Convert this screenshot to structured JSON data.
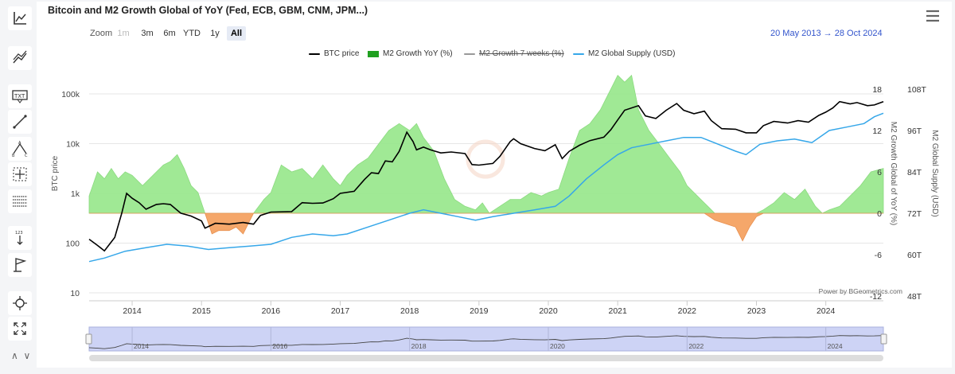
{
  "title": "Bitcoin and M2 Growth Global of YoY (Fed, ECB, GBM, CNM, JPM...)",
  "zoom": {
    "label": "Zoom",
    "buttons": [
      {
        "label": "1m",
        "state": "disabled"
      },
      {
        "label": "3m",
        "state": "normal"
      },
      {
        "label": "6m",
        "state": "normal"
      },
      {
        "label": "YTD",
        "state": "normal"
      },
      {
        "label": "1y",
        "state": "normal"
      },
      {
        "label": "All",
        "state": "active"
      }
    ]
  },
  "date_range": {
    "from": "20 May 2013",
    "arrow": "→",
    "to": "28 Oct 2024"
  },
  "legend": [
    {
      "name": "BTC price",
      "color": "#000000",
      "kind": "line",
      "visible": true
    },
    {
      "name": "M2 Growth YoY (%)",
      "color": "#20a020",
      "kind": "area",
      "visible": true
    },
    {
      "name": "M2 Growth 7 weeks (%)",
      "color": "#999999",
      "kind": "line",
      "visible": false
    },
    {
      "name": "M2 Global Supply (USD)",
      "color": "#36a7e9",
      "kind": "line",
      "visible": true
    }
  ],
  "credit": "Power by BGeometrics.com",
  "chart_data": {
    "type": "line",
    "x_ticks": [
      "2014",
      "2015",
      "2016",
      "2017",
      "2018",
      "2019",
      "2020",
      "2021",
      "2022",
      "2023",
      "2024"
    ],
    "x_range": [
      2013.38,
      2024.83
    ],
    "axes": {
      "btc": {
        "label": "BTC price",
        "scale": "log",
        "range": [
          10,
          200000
        ],
        "ticks": [
          "100k",
          "10k",
          "1k",
          "100",
          "10"
        ]
      },
      "m2_yoy": {
        "label": "M2 Growth Global of YoY (%)",
        "range": [
          -12,
          20
        ],
        "ticks": [
          "18",
          "12",
          "6",
          "0",
          "-6",
          "-12"
        ]
      },
      "m2_supply": {
        "label": "M2 Global Supply (USD)",
        "range": [
          48,
          110
        ],
        "ticks": [
          "108T",
          "96T",
          "84T",
          "72T",
          "60T",
          "48T"
        ]
      }
    },
    "series": [
      {
        "name": "BTC price",
        "axis": "btc",
        "points": [
          [
            2013.38,
            120
          ],
          [
            2013.5,
            90
          ],
          [
            2013.6,
            70
          ],
          [
            2013.75,
            130
          ],
          [
            2013.85,
            400
          ],
          [
            2013.92,
            1000
          ],
          [
            2014.0,
            800
          ],
          [
            2014.1,
            650
          ],
          [
            2014.2,
            480
          ],
          [
            2014.35,
            600
          ],
          [
            2014.45,
            620
          ],
          [
            2014.55,
            600
          ],
          [
            2014.7,
            400
          ],
          [
            2014.85,
            350
          ],
          [
            2015.0,
            280
          ],
          [
            2015.05,
            200
          ],
          [
            2015.2,
            250
          ],
          [
            2015.4,
            240
          ],
          [
            2015.6,
            260
          ],
          [
            2015.75,
            240
          ],
          [
            2015.85,
            360
          ],
          [
            2016.0,
            420
          ],
          [
            2016.3,
            430
          ],
          [
            2016.45,
            650
          ],
          [
            2016.6,
            630
          ],
          [
            2016.75,
            640
          ],
          [
            2016.9,
            780
          ],
          [
            2017.0,
            1000
          ],
          [
            2017.2,
            1100
          ],
          [
            2017.35,
            1900
          ],
          [
            2017.45,
            2600
          ],
          [
            2017.55,
            2500
          ],
          [
            2017.65,
            4500
          ],
          [
            2017.75,
            4300
          ],
          [
            2017.85,
            7000
          ],
          [
            2017.96,
            17000
          ],
          [
            2018.05,
            11000
          ],
          [
            2018.1,
            7500
          ],
          [
            2018.2,
            8500
          ],
          [
            2018.3,
            7500
          ],
          [
            2018.45,
            6500
          ],
          [
            2018.6,
            6800
          ],
          [
            2018.8,
            6300
          ],
          [
            2018.9,
            3800
          ],
          [
            2019.0,
            3700
          ],
          [
            2019.2,
            4000
          ],
          [
            2019.3,
            5500
          ],
          [
            2019.45,
            11000
          ],
          [
            2019.5,
            12500
          ],
          [
            2019.6,
            10000
          ],
          [
            2019.8,
            8000
          ],
          [
            2019.95,
            7200
          ],
          [
            2020.1,
            9500
          ],
          [
            2020.2,
            5000
          ],
          [
            2020.3,
            7000
          ],
          [
            2020.45,
            9300
          ],
          [
            2020.6,
            11500
          ],
          [
            2020.8,
            13500
          ],
          [
            2020.9,
            19000
          ],
          [
            2021.0,
            30000
          ],
          [
            2021.1,
            47000
          ],
          [
            2021.3,
            58000
          ],
          [
            2021.4,
            36000
          ],
          [
            2021.55,
            32000
          ],
          [
            2021.7,
            47000
          ],
          [
            2021.85,
            64000
          ],
          [
            2021.95,
            47000
          ],
          [
            2022.1,
            40000
          ],
          [
            2022.25,
            45000
          ],
          [
            2022.35,
            29000
          ],
          [
            2022.5,
            20000
          ],
          [
            2022.7,
            19500
          ],
          [
            2022.85,
            16500
          ],
          [
            2023.0,
            16500
          ],
          [
            2023.1,
            23000
          ],
          [
            2023.25,
            28000
          ],
          [
            2023.45,
            26000
          ],
          [
            2023.6,
            29000
          ],
          [
            2023.75,
            27000
          ],
          [
            2023.9,
            37000
          ],
          [
            2024.0,
            43000
          ],
          [
            2024.1,
            52000
          ],
          [
            2024.2,
            70000
          ],
          [
            2024.35,
            63000
          ],
          [
            2024.45,
            67000
          ],
          [
            2024.6,
            58000
          ],
          [
            2024.7,
            60000
          ],
          [
            2024.83,
            70000
          ]
        ]
      },
      {
        "name": "M2 Growth YoY (%)",
        "axis": "m2_yoy",
        "points": [
          [
            2013.38,
            2.5
          ],
          [
            2013.5,
            6
          ],
          [
            2013.6,
            5
          ],
          [
            2013.7,
            6.5
          ],
          [
            2013.8,
            5
          ],
          [
            2013.9,
            6
          ],
          [
            2014.0,
            5.5
          ],
          [
            2014.15,
            4
          ],
          [
            2014.25,
            5
          ],
          [
            2014.35,
            6
          ],
          [
            2014.45,
            7
          ],
          [
            2014.55,
            7.5
          ],
          [
            2014.65,
            8.5
          ],
          [
            2014.75,
            6.5
          ],
          [
            2014.85,
            4
          ],
          [
            2014.95,
            3
          ],
          [
            2015.05,
            0
          ],
          [
            2015.15,
            -3
          ],
          [
            2015.25,
            -2.5
          ],
          [
            2015.4,
            -2.5
          ],
          [
            2015.5,
            -2
          ],
          [
            2015.6,
            -3
          ],
          [
            2015.75,
            0
          ],
          [
            2015.9,
            2
          ],
          [
            2016.0,
            3
          ],
          [
            2016.15,
            7
          ],
          [
            2016.3,
            6
          ],
          [
            2016.45,
            6.5
          ],
          [
            2016.6,
            5
          ],
          [
            2016.75,
            7
          ],
          [
            2016.9,
            5
          ],
          [
            2017.0,
            4
          ],
          [
            2017.1,
            5.5
          ],
          [
            2017.25,
            7
          ],
          [
            2017.4,
            8
          ],
          [
            2017.55,
            10
          ],
          [
            2017.7,
            12
          ],
          [
            2017.85,
            13
          ],
          [
            2018.0,
            12
          ],
          [
            2018.1,
            13
          ],
          [
            2018.2,
            11
          ],
          [
            2018.35,
            9
          ],
          [
            2018.5,
            5
          ],
          [
            2018.65,
            2
          ],
          [
            2018.8,
            1
          ],
          [
            2018.95,
            0.5
          ],
          [
            2019.05,
            1.5
          ],
          [
            2019.15,
            0
          ],
          [
            2019.3,
            1
          ],
          [
            2019.45,
            2
          ],
          [
            2019.6,
            2
          ],
          [
            2019.75,
            3
          ],
          [
            2019.9,
            2.5
          ],
          [
            2020.0,
            3
          ],
          [
            2020.15,
            3.5
          ],
          [
            2020.3,
            8
          ],
          [
            2020.45,
            12
          ],
          [
            2020.6,
            13
          ],
          [
            2020.75,
            15
          ],
          [
            2020.9,
            18
          ],
          [
            2021.0,
            20
          ],
          [
            2021.1,
            19
          ],
          [
            2021.2,
            20
          ],
          [
            2021.3,
            15
          ],
          [
            2021.45,
            12
          ],
          [
            2021.6,
            10
          ],
          [
            2021.75,
            8
          ],
          [
            2021.9,
            6
          ],
          [
            2022.0,
            4
          ],
          [
            2022.1,
            3
          ],
          [
            2022.25,
            1.5
          ],
          [
            2022.4,
            -1
          ],
          [
            2022.55,
            -1.5
          ],
          [
            2022.7,
            -2
          ],
          [
            2022.8,
            -4
          ],
          [
            2022.9,
            -2
          ],
          [
            2023.0,
            -0.5
          ],
          [
            2023.1,
            0.5
          ],
          [
            2023.25,
            1.5
          ],
          [
            2023.4,
            3
          ],
          [
            2023.55,
            2
          ],
          [
            2023.7,
            3.5
          ],
          [
            2023.85,
            1
          ],
          [
            2023.95,
            0
          ],
          [
            2024.05,
            0.5
          ],
          [
            2024.2,
            1
          ],
          [
            2024.35,
            2.5
          ],
          [
            2024.5,
            4
          ],
          [
            2024.65,
            6
          ],
          [
            2024.83,
            6.5
          ]
        ]
      },
      {
        "name": "M2 Global Supply (USD)",
        "axis": "m2_supply",
        "points": [
          [
            2013.38,
            58
          ],
          [
            2013.6,
            59
          ],
          [
            2013.9,
            61
          ],
          [
            2014.2,
            62
          ],
          [
            2014.5,
            63
          ],
          [
            2014.8,
            62.5
          ],
          [
            2015.1,
            61.5
          ],
          [
            2015.4,
            62
          ],
          [
            2015.7,
            62.5
          ],
          [
            2016.0,
            63
          ],
          [
            2016.3,
            65
          ],
          [
            2016.6,
            66
          ],
          [
            2016.9,
            65.5
          ],
          [
            2017.1,
            66
          ],
          [
            2017.4,
            68
          ],
          [
            2017.7,
            70
          ],
          [
            2018.0,
            72
          ],
          [
            2018.2,
            73
          ],
          [
            2018.45,
            72
          ],
          [
            2018.7,
            71
          ],
          [
            2018.95,
            70
          ],
          [
            2019.2,
            71
          ],
          [
            2019.5,
            72
          ],
          [
            2019.8,
            73
          ],
          [
            2020.1,
            74
          ],
          [
            2020.3,
            77
          ],
          [
            2020.55,
            82
          ],
          [
            2020.8,
            86
          ],
          [
            2021.0,
            89
          ],
          [
            2021.2,
            91
          ],
          [
            2021.45,
            92
          ],
          [
            2021.7,
            93
          ],
          [
            2021.95,
            94
          ],
          [
            2022.2,
            94
          ],
          [
            2022.45,
            92
          ],
          [
            2022.7,
            90
          ],
          [
            2022.85,
            89
          ],
          [
            2023.05,
            92
          ],
          [
            2023.3,
            93
          ],
          [
            2023.55,
            93.5
          ],
          [
            2023.8,
            92.5
          ],
          [
            2024.05,
            96
          ],
          [
            2024.3,
            97
          ],
          [
            2024.55,
            98
          ],
          [
            2024.7,
            100
          ],
          [
            2024.83,
            101
          ]
        ]
      }
    ]
  },
  "navigator": {
    "x_ticks": [
      "2014",
      "2016",
      "2018",
      "2020",
      "2022",
      "2024"
    ]
  },
  "toolbar_icons": [
    "chart-type-icon",
    "indicators-icon",
    "text-annotation-icon",
    "line-tool-icon",
    "pattern-icon",
    "crosshair-icon",
    "table-icon",
    "measure-icon",
    "flag-icon",
    "zoom-in-icon",
    "fullscreen-icon"
  ]
}
